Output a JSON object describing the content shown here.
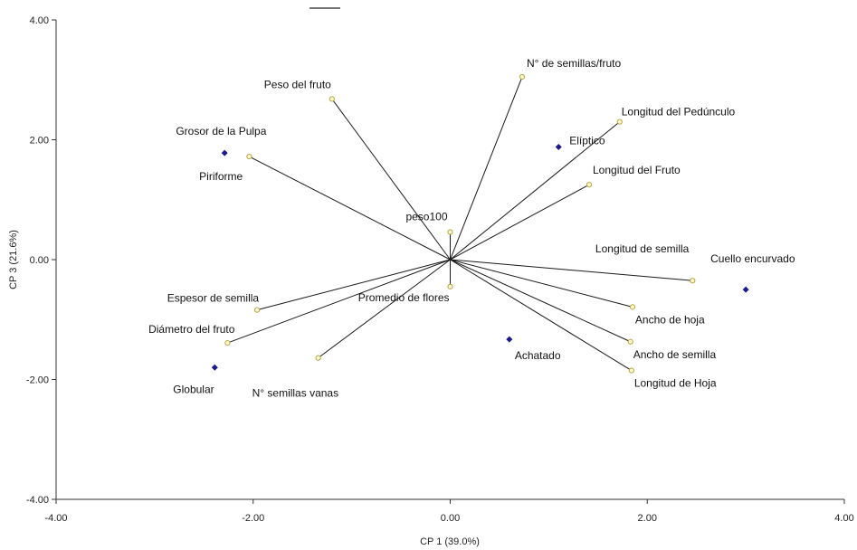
{
  "chart_data": {
    "type": "scatter",
    "subtype": "biplot",
    "title": "",
    "xlabel": "CP 1 (39.0%)",
    "ylabel": "CP 3 (21.6%)",
    "xlim": [
      -4,
      4
    ],
    "ylim": [
      -4,
      4
    ],
    "xticks": [
      "-4.00",
      "-2.00",
      "0.00",
      "2.00",
      "4.00"
    ],
    "yticks": [
      "4.00",
      "2.00",
      "0.00",
      "-2.00",
      "-4.00"
    ],
    "xtick_values": [
      -4,
      -2,
      0,
      2,
      4
    ],
    "ytick_values": [
      4,
      2,
      0,
      -2,
      -4
    ],
    "grid": false,
    "colors": {
      "points": "#1a1a8c",
      "vectors": "#1a1a1a",
      "vector_marker": "#b5a642"
    },
    "vectors": [
      {
        "name": "N° de semillas/fruto",
        "x": 0.73,
        "y": 3.05
      },
      {
        "name": "Longitud del Pedúnculo",
        "x": 1.72,
        "y": 2.3
      },
      {
        "name": "Longitud del Fruto",
        "x": 1.41,
        "y": 1.25
      },
      {
        "name": "Peso del fruto",
        "x": -1.2,
        "y": 2.68
      },
      {
        "name": "Grosor de la Pulpa",
        "x": -2.04,
        "y": 1.72
      },
      {
        "name": "peso100",
        "x": 0.0,
        "y": 0.46
      },
      {
        "name": "Promedio de flores",
        "x": 0.0,
        "y": -0.45
      },
      {
        "name": "Longitud de semilla",
        "x": 2.46,
        "y": -0.35
      },
      {
        "name": "Ancho de hoja",
        "x": 1.85,
        "y": -0.79
      },
      {
        "name": "Ancho de semilla",
        "x": 1.83,
        "y": -1.37
      },
      {
        "name": "Longitud de Hoja",
        "x": 1.84,
        "y": -1.85
      },
      {
        "name": "Espesor de semilla",
        "x": -1.96,
        "y": -0.84
      },
      {
        "name": "Diámetro del fruto",
        "x": -2.26,
        "y": -1.39
      },
      {
        "name": "N° semillas vanas",
        "x": -1.34,
        "y": -1.64
      }
    ],
    "points": [
      {
        "name": "Piriforme",
        "x": -2.29,
        "y": 1.78
      },
      {
        "name": "Elíptico",
        "x": 1.1,
        "y": 1.88
      },
      {
        "name": "Cuello encurvado",
        "x": 3.0,
        "y": -0.5
      },
      {
        "name": "Achatado",
        "x": 0.6,
        "y": -1.33
      },
      {
        "name": "Globular",
        "x": -2.39,
        "y": -1.8
      }
    ]
  }
}
